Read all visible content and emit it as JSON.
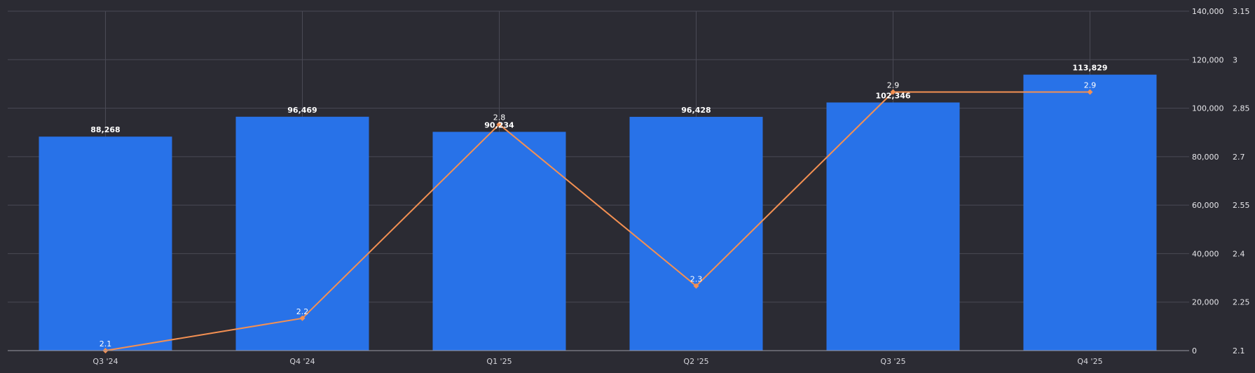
{
  "chart_data": {
    "type": "bar",
    "categories": [
      "Q3 '24",
      "Q4 '24",
      "Q1 '25",
      "Q2 '25",
      "Q3 '25",
      "Q4 '25"
    ],
    "series": [
      {
        "type": "bar",
        "axis": "left",
        "values": [
          88268,
          96469,
          90234,
          96428,
          102346,
          113829
        ],
        "labels": [
          "88,268",
          "96,469",
          "90,234",
          "96,428",
          "102,346",
          "113,829"
        ]
      },
      {
        "type": "line",
        "axis": "right",
        "values": [
          2.1,
          2.2,
          2.8,
          2.3,
          2.9,
          2.9
        ],
        "labels": [
          "2.1",
          "2.2",
          "2.8",
          "2.3",
          "2.9",
          "2.9"
        ]
      }
    ],
    "y_left": {
      "ylim": [
        0,
        140000
      ],
      "ticks": [
        0,
        20000,
        40000,
        60000,
        80000,
        100000,
        120000,
        140000
      ],
      "tick_labels": [
        "0",
        "20,000",
        "40,000",
        "60,000",
        "80,000",
        "100,000",
        "120,000",
        "140,000"
      ]
    },
    "y_right": {
      "ylim": [
        2.1,
        3.15
      ],
      "ticks": [
        2.1,
        2.25,
        2.4,
        2.55,
        2.7,
        2.85,
        3,
        3.15
      ],
      "tick_labels": [
        "2.1",
        "2.25",
        "2.4",
        "2.55",
        "2.7",
        "2.85",
        "3",
        "3.15"
      ]
    },
    "title": "",
    "xlabel": "",
    "ylabel": "",
    "grid": true,
    "colors": {
      "background": "#2b2b33",
      "bar": "#2872e8",
      "line": "#f49052",
      "grid": "#4a4a55",
      "axis": "#9a9aa3"
    }
  }
}
